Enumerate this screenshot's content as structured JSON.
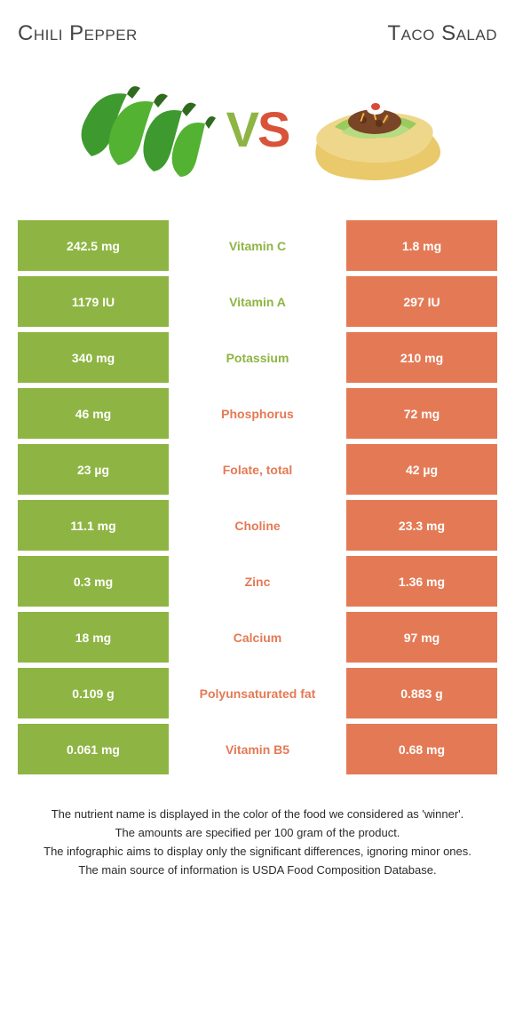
{
  "colors": {
    "left": "#8eb543",
    "right": "#e47a55",
    "vs_v": "#8eb543",
    "vs_s": "#d9533a",
    "text_dark": "#333333",
    "footnote": "#2a2a2a"
  },
  "header": {
    "left_title": "Chili pepper",
    "right_title": "Taco salad"
  },
  "vs": {
    "v": "V",
    "s": "S"
  },
  "nutrients": [
    {
      "name": "Vitamin C",
      "left": "242.5 mg",
      "right": "1.8 mg",
      "winner": "left"
    },
    {
      "name": "Vitamin A",
      "left": "1179 IU",
      "right": "297 IU",
      "winner": "left"
    },
    {
      "name": "Potassium",
      "left": "340 mg",
      "right": "210 mg",
      "winner": "left"
    },
    {
      "name": "Phosphorus",
      "left": "46 mg",
      "right": "72 mg",
      "winner": "right"
    },
    {
      "name": "Folate, total",
      "left": "23 µg",
      "right": "42 µg",
      "winner": "right"
    },
    {
      "name": "Choline",
      "left": "11.1 mg",
      "right": "23.3 mg",
      "winner": "right"
    },
    {
      "name": "Zinc",
      "left": "0.3 mg",
      "right": "1.36 mg",
      "winner": "right"
    },
    {
      "name": "Calcium",
      "left": "18 mg",
      "right": "97 mg",
      "winner": "right"
    },
    {
      "name": "Polyunsaturated fat",
      "left": "0.109 g",
      "right": "0.883 g",
      "winner": "right"
    },
    {
      "name": "Vitamin B5",
      "left": "0.061 mg",
      "right": "0.68 mg",
      "winner": "right"
    }
  ],
  "footnotes": [
    "The nutrient name is displayed in the color of the food we considered as 'winner'.",
    "The amounts are specified per 100 gram of the product.",
    "The infographic aims to display only the significant differences, ignoring minor ones.",
    "The main source of information is USDA Food Composition Database."
  ]
}
